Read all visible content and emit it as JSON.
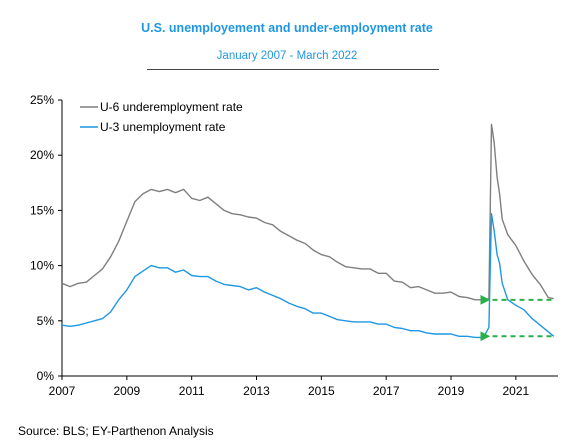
{
  "title": "U.S. unemployement and under-employment rate",
  "subtitle": "January 2007 - March 2022",
  "source": "Source: BLS; EY-Parthenon Analysis",
  "chart_data": {
    "type": "line",
    "title": "U.S. unemployement and under-employment rate",
    "subtitle": "January 2007 - March 2022",
    "xlabel": "",
    "ylabel": "",
    "xlim": [
      2007,
      2022.3
    ],
    "ylim": [
      0,
      25
    ],
    "x_ticks": [
      2007,
      2009,
      2011,
      2013,
      2015,
      2017,
      2019,
      2021
    ],
    "x_tick_labels": [
      "2007",
      "2009",
      "2011",
      "2013",
      "2015",
      "2017",
      "2019",
      "2021"
    ],
    "y_ticks": [
      0,
      5,
      10,
      15,
      20,
      25
    ],
    "y_tick_labels": [
      "0%",
      "5%",
      "10%",
      "15%",
      "20%",
      "25%"
    ],
    "grid": false,
    "legend_position": "top-left",
    "series": [
      {
        "name": "U-6 underemployment rate",
        "color": "#7f7f7f",
        "points": [
          [
            2007.0,
            8.4
          ],
          [
            2007.25,
            8.1
          ],
          [
            2007.5,
            8.4
          ],
          [
            2007.75,
            8.5
          ],
          [
            2008.0,
            9.1
          ],
          [
            2008.25,
            9.7
          ],
          [
            2008.5,
            10.8
          ],
          [
            2008.75,
            12.2
          ],
          [
            2009.0,
            14.0
          ],
          [
            2009.25,
            15.8
          ],
          [
            2009.5,
            16.5
          ],
          [
            2009.75,
            16.9
          ],
          [
            2010.0,
            16.7
          ],
          [
            2010.25,
            16.9
          ],
          [
            2010.5,
            16.6
          ],
          [
            2010.75,
            16.9
          ],
          [
            2011.0,
            16.1
          ],
          [
            2011.25,
            15.9
          ],
          [
            2011.5,
            16.2
          ],
          [
            2011.75,
            15.6
          ],
          [
            2012.0,
            15.0
          ],
          [
            2012.25,
            14.7
          ],
          [
            2012.5,
            14.6
          ],
          [
            2012.75,
            14.4
          ],
          [
            2013.0,
            14.3
          ],
          [
            2013.25,
            13.9
          ],
          [
            2013.5,
            13.7
          ],
          [
            2013.75,
            13.1
          ],
          [
            2014.0,
            12.7
          ],
          [
            2014.25,
            12.3
          ],
          [
            2014.5,
            12.0
          ],
          [
            2014.75,
            11.4
          ],
          [
            2015.0,
            11.0
          ],
          [
            2015.25,
            10.8
          ],
          [
            2015.5,
            10.3
          ],
          [
            2015.75,
            9.9
          ],
          [
            2016.0,
            9.8
          ],
          [
            2016.25,
            9.7
          ],
          [
            2016.5,
            9.7
          ],
          [
            2016.75,
            9.3
          ],
          [
            2017.0,
            9.3
          ],
          [
            2017.25,
            8.6
          ],
          [
            2017.5,
            8.5
          ],
          [
            2017.75,
            8.0
          ],
          [
            2018.0,
            8.1
          ],
          [
            2018.25,
            7.8
          ],
          [
            2018.5,
            7.5
          ],
          [
            2018.75,
            7.5
          ],
          [
            2019.0,
            7.6
          ],
          [
            2019.25,
            7.2
          ],
          [
            2019.5,
            7.1
          ],
          [
            2019.75,
            6.9
          ],
          [
            2020.0,
            6.9
          ],
          [
            2020.17,
            7.0
          ],
          [
            2020.25,
            22.8
          ],
          [
            2020.33,
            21.2
          ],
          [
            2020.42,
            18.0
          ],
          [
            2020.5,
            16.5
          ],
          [
            2020.58,
            14.2
          ],
          [
            2020.75,
            12.8
          ],
          [
            2021.0,
            11.8
          ],
          [
            2021.25,
            10.4
          ],
          [
            2021.5,
            9.2
          ],
          [
            2021.75,
            8.3
          ],
          [
            2022.0,
            7.1
          ],
          [
            2022.17,
            7.0
          ]
        ]
      },
      {
        "name": "U-3 unemployment rate",
        "color": "#1f97e3",
        "points": [
          [
            2007.0,
            4.6
          ],
          [
            2007.25,
            4.5
          ],
          [
            2007.5,
            4.6
          ],
          [
            2007.75,
            4.8
          ],
          [
            2008.0,
            5.0
          ],
          [
            2008.25,
            5.2
          ],
          [
            2008.5,
            5.8
          ],
          [
            2008.75,
            6.9
          ],
          [
            2009.0,
            7.8
          ],
          [
            2009.25,
            9.0
          ],
          [
            2009.5,
            9.5
          ],
          [
            2009.75,
            10.0
          ],
          [
            2010.0,
            9.8
          ],
          [
            2010.25,
            9.8
          ],
          [
            2010.5,
            9.4
          ],
          [
            2010.75,
            9.6
          ],
          [
            2011.0,
            9.1
          ],
          [
            2011.25,
            9.0
          ],
          [
            2011.5,
            9.0
          ],
          [
            2011.75,
            8.6
          ],
          [
            2012.0,
            8.3
          ],
          [
            2012.25,
            8.2
          ],
          [
            2012.5,
            8.1
          ],
          [
            2012.75,
            7.8
          ],
          [
            2013.0,
            8.0
          ],
          [
            2013.25,
            7.6
          ],
          [
            2013.5,
            7.3
          ],
          [
            2013.75,
            7.0
          ],
          [
            2014.0,
            6.6
          ],
          [
            2014.25,
            6.3
          ],
          [
            2014.5,
            6.1
          ],
          [
            2014.75,
            5.7
          ],
          [
            2015.0,
            5.7
          ],
          [
            2015.25,
            5.4
          ],
          [
            2015.5,
            5.1
          ],
          [
            2015.75,
            5.0
          ],
          [
            2016.0,
            4.9
          ],
          [
            2016.25,
            4.9
          ],
          [
            2016.5,
            4.9
          ],
          [
            2016.75,
            4.7
          ],
          [
            2017.0,
            4.7
          ],
          [
            2017.25,
            4.4
          ],
          [
            2017.5,
            4.3
          ],
          [
            2017.75,
            4.1
          ],
          [
            2018.0,
            4.1
          ],
          [
            2018.25,
            3.9
          ],
          [
            2018.5,
            3.8
          ],
          [
            2018.75,
            3.8
          ],
          [
            2019.0,
            3.8
          ],
          [
            2019.25,
            3.6
          ],
          [
            2019.5,
            3.6
          ],
          [
            2019.75,
            3.5
          ],
          [
            2020.0,
            3.5
          ],
          [
            2020.17,
            4.4
          ],
          [
            2020.25,
            14.7
          ],
          [
            2020.33,
            13.2
          ],
          [
            2020.42,
            11.0
          ],
          [
            2020.5,
            10.2
          ],
          [
            2020.58,
            8.4
          ],
          [
            2020.75,
            6.9
          ],
          [
            2021.0,
            6.4
          ],
          [
            2021.25,
            6.0
          ],
          [
            2021.5,
            5.2
          ],
          [
            2021.75,
            4.6
          ],
          [
            2022.0,
            4.0
          ],
          [
            2022.17,
            3.6
          ]
        ]
      }
    ],
    "annotations": [
      {
        "type": "dashed-arrow",
        "color": "#2ab04a",
        "from": [
          2022.1,
          6.9
        ],
        "to": [
          2020.15,
          6.9
        ]
      },
      {
        "type": "dashed-arrow",
        "color": "#2ab04a",
        "from": [
          2022.1,
          3.6
        ],
        "to": [
          2020.15,
          3.6
        ]
      }
    ]
  }
}
